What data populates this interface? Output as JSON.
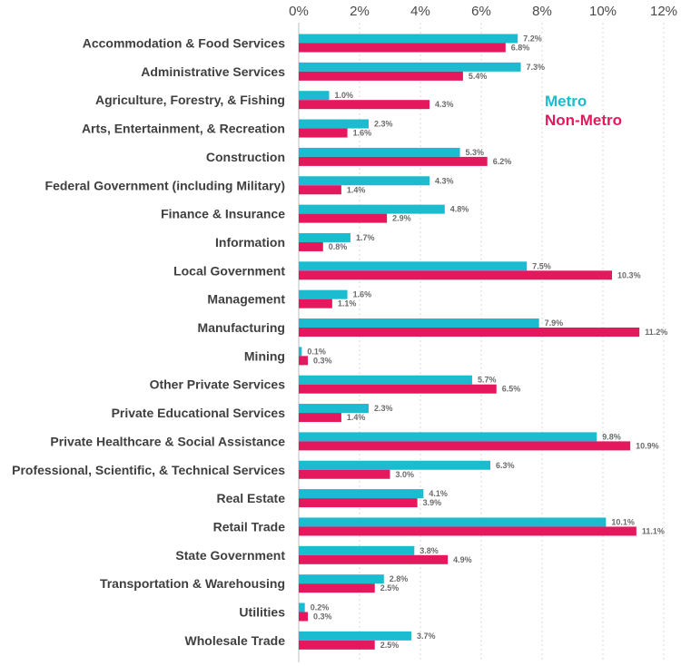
{
  "chart_data": {
    "type": "bar",
    "orientation": "horizontal",
    "categories": [
      "Accommodation & Food Services",
      "Administrative Services",
      "Agriculture, Forestry, & Fishing",
      "Arts, Entertainment, & Recreation",
      "Construction",
      "Federal Government (including Military)",
      "Finance & Insurance",
      "Information",
      "Local Government",
      "Management",
      "Manufacturing",
      "Mining",
      "Other Private Services",
      "Private Educational Services",
      "Private Healthcare & Social Assistance",
      "Professional, Scientific, & Technical Services",
      "Real Estate",
      "Retail Trade",
      "State Government",
      "Transportation & Warehousing",
      "Utilities",
      "Wholesale Trade"
    ],
    "series": [
      {
        "name": "Metro",
        "color": "#1bbccf",
        "values": [
          7.2,
          7.3,
          1.0,
          2.3,
          5.3,
          4.3,
          4.8,
          1.7,
          7.5,
          1.6,
          7.9,
          0.1,
          5.7,
          2.3,
          9.8,
          6.3,
          4.1,
          10.1,
          3.8,
          2.8,
          0.2,
          3.7
        ],
        "labels": [
          "7.2%",
          "7.3%",
          "1.0%",
          "2.3%",
          "5.3%",
          "4.3%",
          "4.8%",
          "1.7%",
          "7.5%",
          "1.6%",
          "7.9%",
          "0.1%",
          "5.7%",
          "2.3%",
          "9.8%",
          "6.3%",
          "4.1%",
          "10.1%",
          "3.8%",
          "2.8%",
          "0.2%",
          "3.7%"
        ]
      },
      {
        "name": "Non-Metro",
        "color": "#e5175d",
        "values": [
          6.8,
          5.4,
          4.3,
          1.6,
          6.2,
          1.4,
          2.9,
          0.8,
          10.3,
          1.1,
          11.2,
          0.3,
          6.5,
          1.4,
          10.9,
          3.0,
          3.9,
          11.1,
          4.9,
          2.5,
          0.3,
          2.5
        ],
        "labels": [
          "6.8%",
          "5.4%",
          "4.3%",
          "1.6%",
          "6.2%",
          "1.4%",
          "2.9%",
          "0.8%",
          "10.3%",
          "1.1%",
          "11.2%",
          "0.3%",
          "6.5%",
          "1.4%",
          "10.9%",
          "3.0%",
          "3.9%",
          "11.1%",
          "4.9%",
          "2.5%",
          "0.3%",
          "2.5%"
        ]
      }
    ],
    "x_ticks": [
      "0%",
      "2%",
      "4%",
      "6%",
      "8%",
      "10%",
      "12%"
    ],
    "x_tick_values": [
      0,
      2,
      4,
      6,
      8,
      10,
      12
    ],
    "xlim": [
      0,
      12
    ],
    "grid": true,
    "legend_position": "top-right"
  }
}
